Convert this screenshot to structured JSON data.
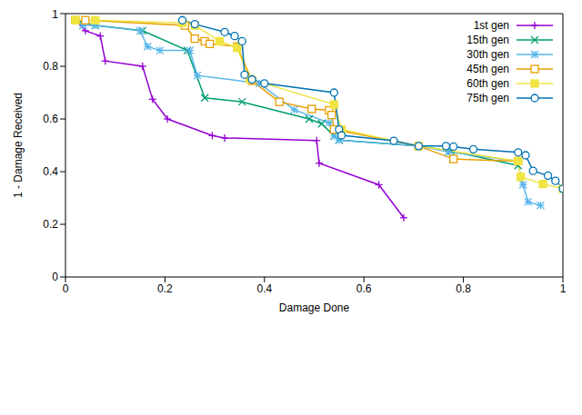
{
  "chart_data": {
    "type": "line",
    "x_label": "Damage Done",
    "y_label": "1 - Damage Received",
    "xlim": [
      0,
      1
    ],
    "ylim": [
      0,
      1
    ],
    "xticks": [
      0,
      0.2,
      0.4,
      0.6,
      0.8,
      1
    ],
    "yticks": [
      0,
      0.2,
      0.4,
      0.6,
      0.8,
      1
    ],
    "grid": false,
    "legend": "upper right",
    "series": [
      {
        "name": "1st gen",
        "color": "#9400d3",
        "marker": "plus",
        "x": [
          0.02,
          0.04,
          0.07,
          0.08,
          0.155,
          0.175,
          0.205,
          0.295,
          0.32,
          0.505,
          0.51,
          0.63,
          0.68
        ],
        "values": [
          0.975,
          0.935,
          0.915,
          0.82,
          0.8,
          0.675,
          0.6,
          0.537,
          0.528,
          0.518,
          0.432,
          0.35,
          0.225
        ]
      },
      {
        "name": "15th gen",
        "color": "#009e73",
        "marker": "cross",
        "x": [
          0.02,
          0.06,
          0.155,
          0.245,
          0.28,
          0.355,
          0.49,
          0.515,
          0.54,
          0.55,
          0.71,
          0.775,
          0.91
        ],
        "values": [
          0.975,
          0.955,
          0.935,
          0.86,
          0.68,
          0.665,
          0.6,
          0.582,
          0.535,
          0.52,
          0.497,
          0.478,
          0.423
        ]
      },
      {
        "name": "30th gen",
        "color": "#56b4e9",
        "marker": "asterisk",
        "x": [
          0.02,
          0.035,
          0.06,
          0.15,
          0.165,
          0.19,
          0.25,
          0.265,
          0.39,
          0.46,
          0.53,
          0.54,
          0.55,
          0.71,
          0.77,
          0.91,
          0.915,
          0.92,
          0.93,
          0.955
        ],
        "values": [
          0.975,
          0.955,
          0.955,
          0.935,
          0.875,
          0.86,
          0.86,
          0.765,
          0.735,
          0.635,
          0.585,
          0.535,
          0.52,
          0.497,
          0.475,
          0.44,
          0.38,
          0.35,
          0.285,
          0.272
        ]
      },
      {
        "name": "45th gen",
        "color": "#e69f00",
        "marker": "square_open",
        "x": [
          0.02,
          0.04,
          0.24,
          0.26,
          0.28,
          0.29,
          0.345,
          0.375,
          0.43,
          0.495,
          0.53,
          0.535,
          0.54,
          0.71,
          0.78,
          0.91
        ],
        "values": [
          0.975,
          0.975,
          0.955,
          0.905,
          0.895,
          0.885,
          0.875,
          0.745,
          0.665,
          0.638,
          0.633,
          0.615,
          0.56,
          0.497,
          0.448,
          0.44
        ]
      },
      {
        "name": "60th gen",
        "color": "#f0e442",
        "marker": "square",
        "x": [
          0.02,
          0.06,
          0.235,
          0.26,
          0.31,
          0.345,
          0.37,
          0.54,
          0.555,
          0.71,
          0.91,
          0.915,
          0.96,
          1.0
        ],
        "values": [
          0.975,
          0.975,
          0.965,
          0.955,
          0.895,
          0.87,
          0.752,
          0.655,
          0.56,
          0.497,
          0.44,
          0.38,
          0.353,
          0.335
        ]
      },
      {
        "name": "75th gen",
        "color": "#0072b2",
        "marker": "circle_open",
        "x": [
          0.235,
          0.26,
          0.32,
          0.34,
          0.355,
          0.36,
          0.375,
          0.4,
          0.54,
          0.55,
          0.555,
          0.66,
          0.71,
          0.765,
          0.78,
          0.82,
          0.91,
          0.925,
          0.94,
          0.97,
          0.985,
          1.0
        ],
        "values": [
          0.975,
          0.96,
          0.93,
          0.915,
          0.895,
          0.768,
          0.75,
          0.735,
          0.7,
          0.56,
          0.538,
          0.517,
          0.497,
          0.497,
          0.495,
          0.485,
          0.473,
          0.462,
          0.403,
          0.385,
          0.365,
          0.335
        ]
      }
    ]
  }
}
